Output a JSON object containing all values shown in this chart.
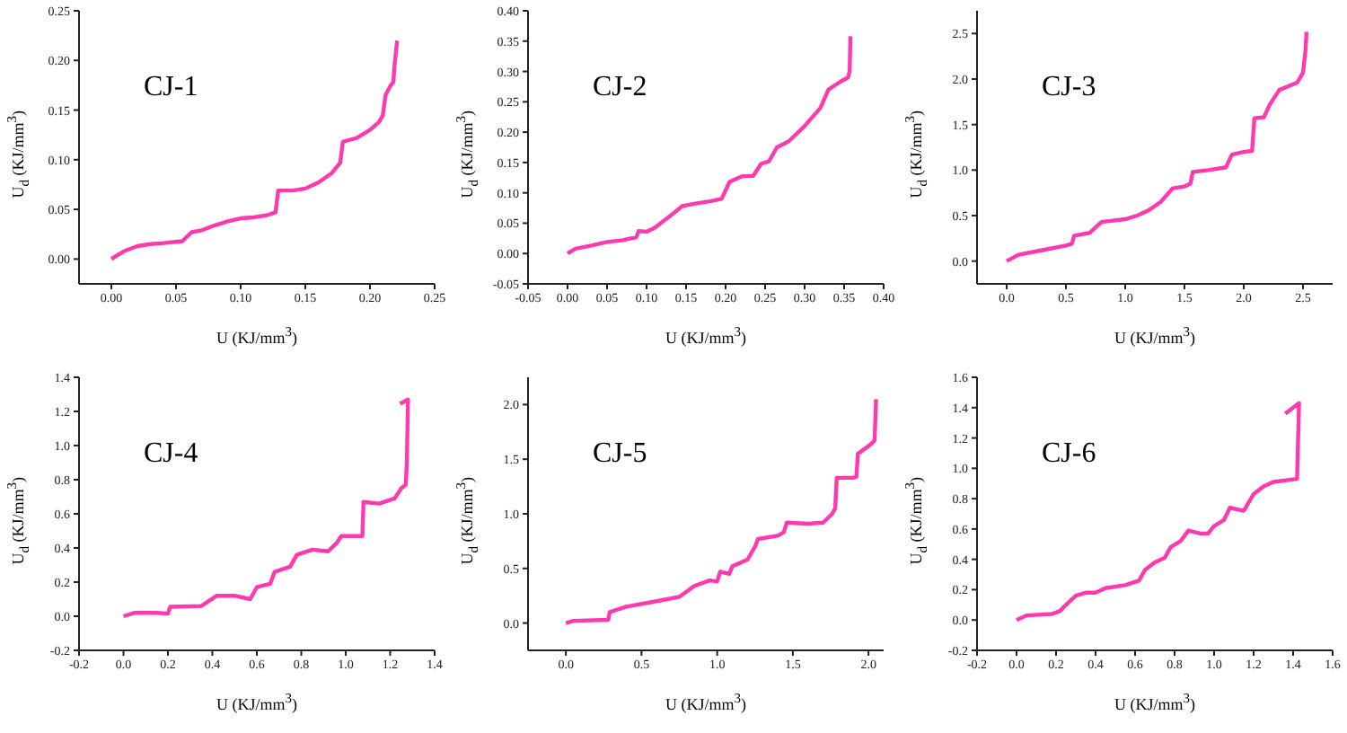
{
  "chart_data": [
    {
      "type": "line",
      "title": "CJ-1",
      "xlabel": "U (KJ/mm$^{3}$)",
      "ylabel": "U$_{d}$ (KJ/mm$^{3}$)",
      "color": "#ff3aaf",
      "xlim": [
        -0.025,
        0.25
      ],
      "xticks": [
        {
          "value": 0,
          "label": "0.00"
        },
        0.05,
        {
          "value": 0.1,
          "label": "0.10"
        },
        0.15,
        {
          "value": 0.2,
          "label": "0.20"
        },
        0.25
      ],
      "ylim": [
        -0.025,
        0.25
      ],
      "yticks": [
        {
          "value": 0,
          "label": "0.00"
        },
        0.05,
        {
          "value": 0.1,
          "label": "0.10"
        },
        0.15,
        {
          "value": 0.2,
          "label": "0.20"
        },
        0.25
      ],
      "x": [
        0,
        0.005,
        0.01,
        0.02,
        0.03,
        0.04,
        0.055,
        0.058,
        0.062,
        0.07,
        0.08,
        0.09,
        0.1,
        0.11,
        0.12,
        0.127,
        0.129,
        0.14,
        0.15,
        0.16,
        0.17,
        0.177,
        0.179,
        0.19,
        0.2,
        0.207,
        0.21,
        0.212,
        0.216,
        0.218,
        0.219,
        0.221
      ],
      "values": [
        0,
        0.004,
        0.008,
        0.013,
        0.015,
        0.016,
        0.018,
        0.022,
        0.027,
        0.029,
        0.034,
        0.038,
        0.041,
        0.042,
        0.044,
        0.047,
        0.069,
        0.069,
        0.071,
        0.077,
        0.086,
        0.097,
        0.118,
        0.122,
        0.13,
        0.138,
        0.145,
        0.165,
        0.175,
        0.178,
        0.195,
        0.22
      ]
    },
    {
      "type": "line",
      "title": "CJ-2",
      "xlabel": "U (KJ/mm$^{3}$)",
      "ylabel": "U$_{d}$ (KJ/mm$^{3}$)",
      "color": "#ff3aaf",
      "xlim": [
        -0.05,
        0.4
      ],
      "xticks": [
        -0.05,
        {
          "value": 0,
          "label": "0.00"
        },
        0.05,
        {
          "value": 0.1,
          "label": "0.10"
        },
        0.15,
        {
          "value": 0.2,
          "label": "0.20"
        },
        0.25,
        {
          "value": 0.3,
          "label": "0.30"
        },
        0.35,
        {
          "value": 0.4,
          "label": "0.40"
        }
      ],
      "ylim": [
        -0.05,
        0.4
      ],
      "yticks": [
        -0.05,
        {
          "value": 0,
          "label": "0.00"
        },
        0.05,
        {
          "value": 0.1,
          "label": "0.10"
        },
        0.15,
        {
          "value": 0.2,
          "label": "0.20"
        },
        0.25,
        {
          "value": 0.3,
          "label": "0.30"
        },
        0.35,
        {
          "value": 0.4,
          "label": "0.40"
        }
      ],
      "x": [
        0,
        0.01,
        0.03,
        0.05,
        0.07,
        0.087,
        0.09,
        0.1,
        0.11,
        0.13,
        0.145,
        0.16,
        0.18,
        0.195,
        0.205,
        0.22,
        0.235,
        0.245,
        0.255,
        0.265,
        0.28,
        0.3,
        0.32,
        0.33,
        0.345,
        0.355,
        0.357,
        0.358
      ],
      "values": [
        0,
        0.008,
        0.013,
        0.019,
        0.022,
        0.027,
        0.037,
        0.036,
        0.042,
        0.062,
        0.078,
        0.082,
        0.086,
        0.09,
        0.118,
        0.127,
        0.128,
        0.148,
        0.152,
        0.175,
        0.185,
        0.21,
        0.24,
        0.27,
        0.283,
        0.29,
        0.3,
        0.358
      ]
    },
    {
      "type": "line",
      "title": "CJ-3",
      "xlabel": "U (KJ/mm$^{3}$)",
      "ylabel": "U$_{d}$ (KJ/mm$^{3}$)",
      "color": "#ff3aaf",
      "xlim": [
        -0.25,
        2.75
      ],
      "xticks": [
        {
          "value": 0,
          "label": "0.0"
        },
        0.5,
        {
          "value": 1,
          "label": "1.0"
        },
        1.5,
        {
          "value": 2,
          "label": "2.0"
        },
        2.5
      ],
      "ylim": [
        -0.25,
        2.75
      ],
      "yticks": [
        {
          "value": 0,
          "label": "0.0"
        },
        0.5,
        {
          "value": 1,
          "label": "1.0"
        },
        1.5,
        {
          "value": 2,
          "label": "2.0"
        },
        2.5
      ],
      "x": [
        0,
        0.1,
        0.3,
        0.5,
        0.55,
        0.57,
        0.7,
        0.8,
        1.0,
        1.1,
        1.2,
        1.3,
        1.4,
        1.5,
        1.55,
        1.57,
        1.7,
        1.85,
        1.9,
        2.0,
        2.07,
        2.09,
        2.17,
        2.22,
        2.3,
        2.45,
        2.5,
        2.52,
        2.53
      ],
      "values": [
        0,
        0.07,
        0.12,
        0.17,
        0.19,
        0.28,
        0.31,
        0.43,
        0.46,
        0.5,
        0.56,
        0.65,
        0.8,
        0.82,
        0.85,
        0.98,
        1.0,
        1.03,
        1.17,
        1.2,
        1.21,
        1.57,
        1.58,
        1.72,
        1.88,
        1.96,
        2.07,
        2.3,
        2.52
      ]
    },
    {
      "type": "line",
      "title": "CJ-4",
      "xlabel": "U (KJ/mm$^{3}$)",
      "ylabel": "U$_{d}$ (KJ/mm$^{3}$)",
      "color": "#ff3aaf",
      "xlim": [
        -0.2,
        1.4
      ],
      "xticks": [
        -0.2,
        {
          "value": 0,
          "label": "0.0"
        },
        0.2,
        0.4,
        0.6,
        0.8,
        {
          "value": 1,
          "label": "1.0"
        },
        1.2,
        1.4
      ],
      "ylim": [
        -0.2,
        1.4
      ],
      "yticks": [
        -0.2,
        {
          "value": 0,
          "label": "0.0"
        },
        0.2,
        0.4,
        0.6,
        0.8,
        {
          "value": 1,
          "label": "1.0"
        },
        1.2,
        1.4
      ],
      "x": [
        0,
        0.05,
        0.15,
        0.2,
        0.21,
        0.35,
        0.42,
        0.5,
        0.57,
        0.6,
        0.66,
        0.68,
        0.75,
        0.78,
        0.85,
        0.92,
        0.96,
        0.98,
        1.06,
        1.075,
        1.08,
        1.15,
        1.22,
        1.25,
        1.27,
        1.275,
        1.28,
        1.245
      ],
      "values": [
        0,
        0.02,
        0.02,
        0.015,
        0.055,
        0.06,
        0.12,
        0.12,
        0.1,
        0.17,
        0.19,
        0.26,
        0.29,
        0.36,
        0.39,
        0.38,
        0.43,
        0.47,
        0.47,
        0.47,
        0.67,
        0.66,
        0.69,
        0.75,
        0.77,
        0.9,
        1.27,
        1.245
      ]
    },
    {
      "type": "line",
      "title": "CJ-5",
      "xlabel": "U (KJ/mm$^{3}$)",
      "ylabel": "U$_{d}$ (KJ/mm$^{3}$)",
      "color": "#ff3aaf",
      "xlim": [
        -0.25,
        2.1
      ],
      "xticks": [
        {
          "value": 0,
          "label": "0.0"
        },
        0.5,
        {
          "value": 1,
          "label": "1.0"
        },
        1.5,
        {
          "value": 2,
          "label": "2.0"
        }
      ],
      "ylim": [
        -0.25,
        2.25
      ],
      "yticks": [
        {
          "value": 0,
          "label": "0.0"
        },
        0.5,
        {
          "value": 1,
          "label": "1.0"
        },
        1.5,
        {
          "value": 2,
          "label": "2.0"
        }
      ],
      "x": [
        0,
        0.05,
        0.28,
        0.29,
        0.4,
        0.6,
        0.75,
        0.85,
        0.95,
        1.0,
        1.02,
        1.08,
        1.1,
        1.2,
        1.25,
        1.27,
        1.4,
        1.44,
        1.46,
        1.6,
        1.7,
        1.76,
        1.78,
        1.79,
        1.9,
        1.92,
        1.93,
        2.0,
        2.04,
        2.05
      ],
      "values": [
        0,
        0.02,
        0.03,
        0.1,
        0.15,
        0.2,
        0.24,
        0.34,
        0.39,
        0.38,
        0.47,
        0.45,
        0.52,
        0.58,
        0.7,
        0.77,
        0.8,
        0.83,
        0.92,
        0.91,
        0.92,
        1.0,
        1.05,
        1.33,
        1.33,
        1.34,
        1.55,
        1.62,
        1.67,
        2.05
      ]
    },
    {
      "type": "line",
      "title": "CJ-6",
      "xlabel": "U (KJ/mm$^{3}$)",
      "ylabel": "U$_{d}$ (KJ/mm$^{3}$)",
      "color": "#ff3aaf",
      "xlim": [
        -0.2,
        1.6
      ],
      "xticks": [
        -0.2,
        {
          "value": 0,
          "label": "0.0"
        },
        0.2,
        0.4,
        0.6,
        0.8,
        {
          "value": 1,
          "label": "1.0"
        },
        1.2,
        1.4,
        1.6
      ],
      "ylim": [
        -0.2,
        1.6
      ],
      "yticks": [
        -0.2,
        {
          "value": 0,
          "label": "0.0"
        },
        0.2,
        0.4,
        0.6,
        0.8,
        {
          "value": 1,
          "label": "1.0"
        },
        1.2,
        1.4,
        1.6
      ],
      "x": [
        0,
        0.05,
        0.18,
        0.22,
        0.25,
        0.3,
        0.35,
        0.4,
        0.45,
        0.55,
        0.62,
        0.65,
        0.7,
        0.75,
        0.78,
        0.83,
        0.87,
        0.93,
        0.97,
        1.0,
        1.05,
        1.08,
        1.15,
        1.2,
        1.25,
        1.3,
        1.42,
        1.43,
        1.36
      ],
      "values": [
        0,
        0.03,
        0.04,
        0.06,
        0.1,
        0.16,
        0.18,
        0.18,
        0.21,
        0.23,
        0.26,
        0.33,
        0.38,
        0.41,
        0.48,
        0.52,
        0.59,
        0.57,
        0.57,
        0.62,
        0.66,
        0.74,
        0.72,
        0.83,
        0.88,
        0.91,
        0.93,
        1.43,
        1.36
      ]
    }
  ]
}
